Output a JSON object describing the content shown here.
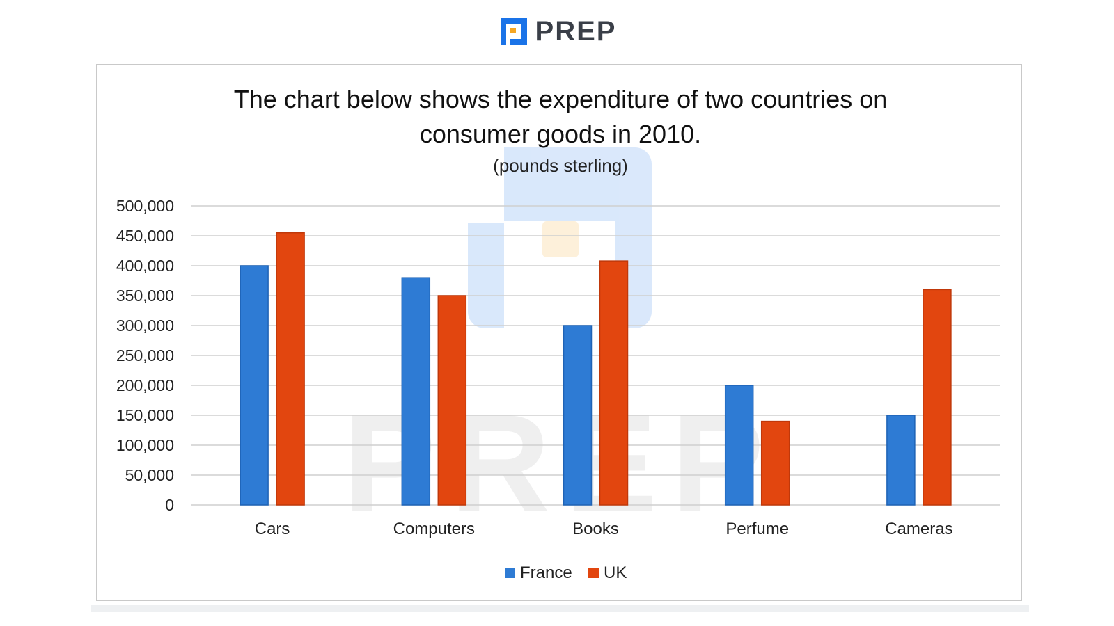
{
  "brand": {
    "name": "PREP",
    "watermark": "PREP"
  },
  "colors": {
    "france": "#2e7bd4",
    "uk": "#e2460f",
    "brand_blue": "#1a73e8",
    "brand_orange": "#f5a623",
    "grid": "#cfcfcf"
  },
  "chart_data": {
    "type": "bar",
    "title": "The chart below shows the expenditure of two countries on consumer goods in 2010.",
    "title_line1": "The chart below shows the expenditure of two countries on",
    "title_line2": "consumer goods in 2010.",
    "subtitle": "(pounds sterling)",
    "categories": [
      "Cars",
      "Computers",
      "Books",
      "Perfume",
      "Cameras"
    ],
    "series": [
      {
        "name": "France",
        "values": [
          400000,
          380000,
          300000,
          200000,
          150000
        ]
      },
      {
        "name": "UK",
        "values": [
          455000,
          350000,
          408000,
          140000,
          360000
        ]
      }
    ],
    "ylim": [
      0,
      500000
    ],
    "yticks": [
      "0",
      "50,000",
      "100,000",
      "150,000",
      "200,000",
      "250,000",
      "300,000",
      "350,000",
      "400,000",
      "450,000",
      "500,000"
    ],
    "grid": true,
    "legend_position": "bottom"
  }
}
